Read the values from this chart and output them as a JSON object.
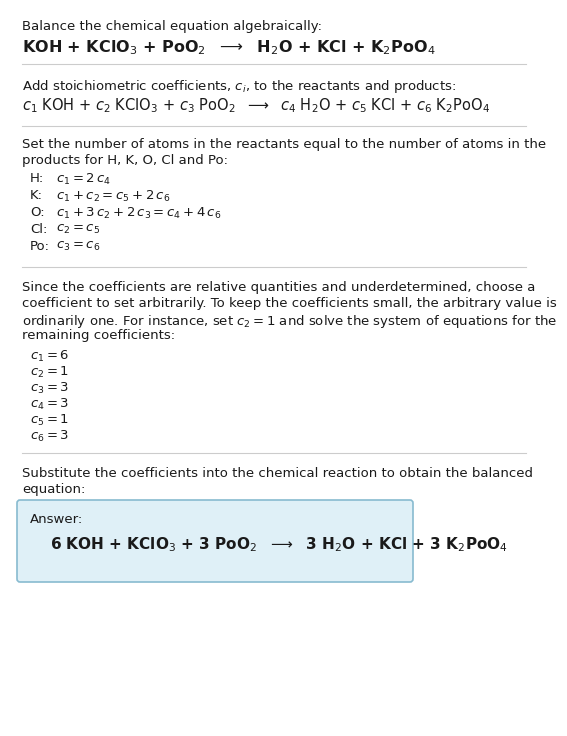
{
  "bg_color": "#ffffff",
  "text_color": "#1a1a1a",
  "section1_title": "Balance the chemical equation algebraically:",
  "section1_eq": "KOH + KClO$_3$ + PoO$_2$  $\\longrightarrow$  H$_2$O + KCl + K$_2$PoO$_4$",
  "section2_title": "Add stoichiometric coefficients, $c_i$, to the reactants and products:",
  "section2_eq": "$c_1$ KOH + $c_2$ KClO$_3$ + $c_3$ PoO$_2$  $\\longrightarrow$  $c_4$ H$_2$O + $c_5$ KCl + $c_6$ K$_2$PoO$_4$",
  "section3_title_line1": "Set the number of atoms in the reactants equal to the number of atoms in the",
  "section3_title_line2": "products for H, K, O, Cl and Po:",
  "section3_lines": [
    [
      "H:",
      "$c_1 = 2\\,c_4$"
    ],
    [
      "K:",
      "$c_1 + c_2 = c_5 + 2\\,c_6$"
    ],
    [
      "O:",
      "$c_1 + 3\\,c_2 + 2\\,c_3 = c_4 + 4\\,c_6$"
    ],
    [
      "Cl:",
      "$c_2 = c_5$"
    ],
    [
      "Po:",
      "$c_3 = c_6$"
    ]
  ],
  "section4_para": [
    "Since the coefficients are relative quantities and underdetermined, choose a",
    "coefficient to set arbitrarily. To keep the coefficients small, the arbitrary value is",
    "ordinarily one. For instance, set $c_2 = 1$ and solve the system of equations for the",
    "remaining coefficients:"
  ],
  "section4_coeffs": [
    "$c_1 = 6$",
    "$c_2 = 1$",
    "$c_3 = 3$",
    "$c_4 = 3$",
    "$c_5 = 1$",
    "$c_6 = 3$"
  ],
  "section5_text_line1": "Substitute the coefficients into the chemical reaction to obtain the balanced",
  "section5_text_line2": "equation:",
  "answer_label": "Answer:",
  "answer_eq": "6 KOH + KClO$_3$ + 3 PoO$_2$  $\\longrightarrow$  3 H$_2$O + KCl + 3 K$_2$PoO$_4$",
  "answer_box_facecolor": "#dff0f7",
  "answer_box_edgecolor": "#88bbd0",
  "divider_color": "#cccccc",
  "fs": 9.5,
  "fs_eq1": 11.5,
  "fs_eq2": 10.5,
  "fs_answer": 11.0
}
